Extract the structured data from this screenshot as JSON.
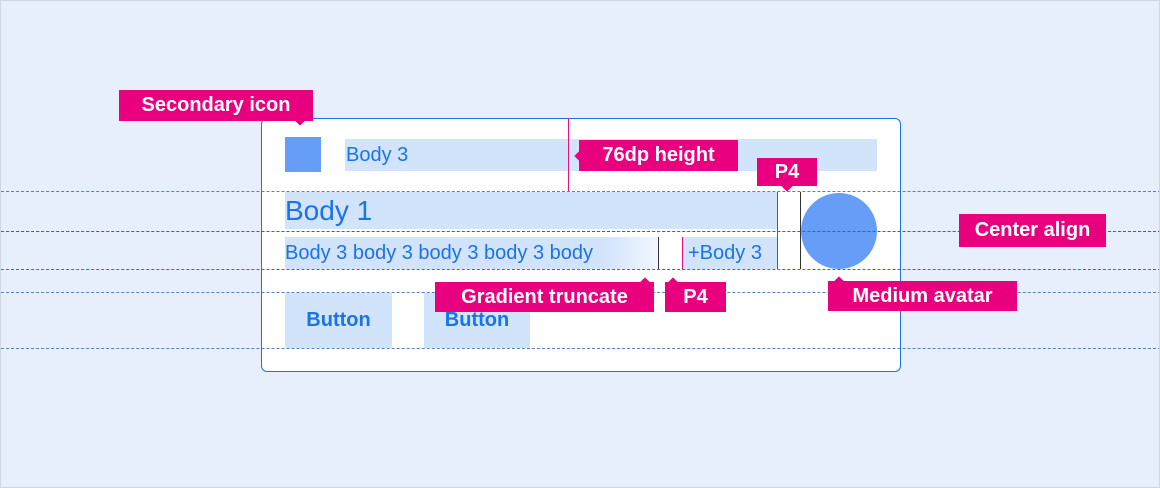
{
  "card": {
    "overline": "Body 3",
    "title": "Body 1",
    "body": "Body 3 body 3 body 3 body 3 body",
    "meta": "+Body 3",
    "buttons": [
      "Button",
      "Button"
    ]
  },
  "annotations": {
    "secondary_icon": "Secondary icon",
    "height": "76dp height",
    "p4_top": "P4",
    "center_align": "Center align",
    "gradient_truncate": "Gradient truncate",
    "p4_bottom": "P4",
    "medium_avatar": "Medium avatar"
  },
  "colors": {
    "background": "#e8effc",
    "accent": "#1a73e8",
    "highlight": "#d2e3fc",
    "annotation": "#e8007f",
    "avatar": "#669df6"
  }
}
